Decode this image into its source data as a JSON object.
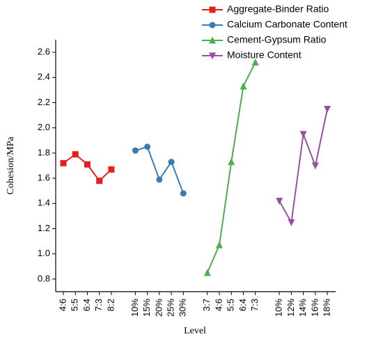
{
  "chart_data": {
    "type": "line",
    "x_label": "Level",
    "y_label": "Cohesion/MPa",
    "categories": [
      "4:6",
      "5:5",
      "6:4",
      "7:3",
      "8:2",
      null,
      "10%",
      "15%",
      "20%",
      "25%",
      "30%",
      null,
      "3:7",
      "4:6",
      "5:5",
      "6:4",
      "7:3",
      null,
      "10%",
      "12%",
      "14%",
      "16%",
      "18%"
    ],
    "series": [
      {
        "name": "Aggregate-Binder Ratio",
        "color": "#e3201b",
        "marker": "square",
        "values": [
          1.72,
          1.79,
          1.71,
          1.58,
          1.67,
          null,
          null,
          null,
          null,
          null,
          null,
          null,
          null,
          null,
          null,
          null,
          null,
          null,
          null,
          null,
          null,
          null,
          null
        ]
      },
      {
        "name": "Calcium Carbonate Content",
        "color": "#3a7bb5",
        "marker": "circle",
        "values": [
          null,
          null,
          null,
          null,
          null,
          null,
          1.82,
          1.85,
          1.59,
          1.73,
          1.48,
          null,
          null,
          null,
          null,
          null,
          null,
          null,
          null,
          null,
          null,
          null,
          null
        ]
      },
      {
        "name": "Cement-Gypsum Ratio",
        "color": "#4cae4c",
        "marker": "triangle-up",
        "values": [
          null,
          null,
          null,
          null,
          null,
          null,
          null,
          null,
          null,
          null,
          null,
          null,
          0.85,
          1.07,
          1.73,
          2.33,
          2.52,
          null,
          null,
          null,
          null,
          null,
          null
        ]
      },
      {
        "name": "Moisture Content",
        "color": "#984ea3",
        "marker": "triangle-down",
        "values": [
          null,
          null,
          null,
          null,
          null,
          null,
          null,
          null,
          null,
          null,
          null,
          null,
          null,
          null,
          null,
          null,
          null,
          null,
          1.42,
          1.25,
          1.95,
          1.7,
          2.15
        ]
      }
    ],
    "ylim": [
      0.7,
      2.7
    ],
    "yticks": [
      0.8,
      {
        "value": 1,
        "label": "1.0"
      },
      1.2,
      1.4,
      1.6,
      1.8,
      {
        "value": 2,
        "label": "2.0"
      },
      2.2,
      2.4,
      2.6
    ],
    "grid": false,
    "legend": "upper right"
  }
}
